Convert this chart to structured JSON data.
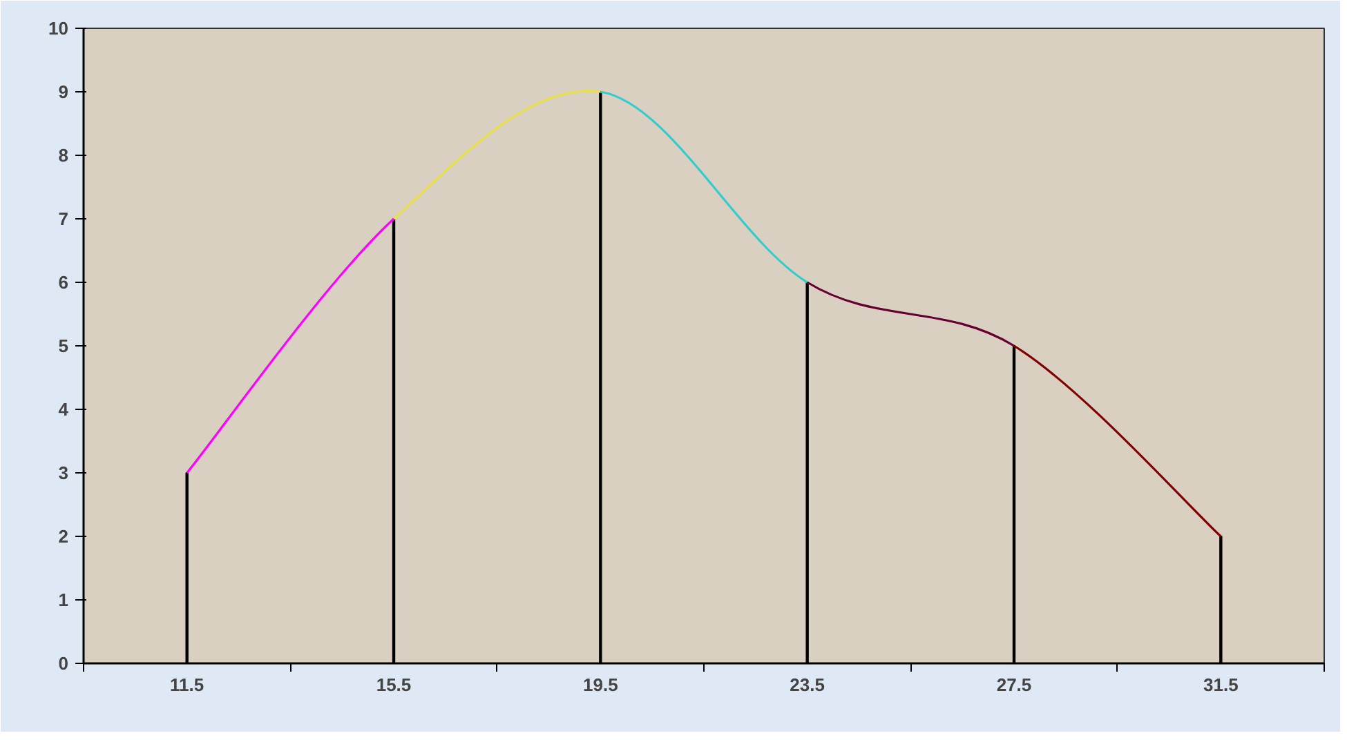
{
  "chart_data": {
    "type": "line",
    "categories": [
      "11.5",
      "15.5",
      "19.5",
      "23.5",
      "27.5",
      "31.5"
    ],
    "ylim": [
      0,
      10
    ],
    "yticks": [
      0,
      1,
      2,
      3,
      4,
      5,
      6,
      7,
      8,
      9,
      10
    ],
    "grid": false,
    "marker": "none",
    "line_style": "solid",
    "series": [
      {
        "type": "bar",
        "color": "#000000",
        "values": [
          3,
          7,
          9,
          6,
          5,
          2
        ]
      },
      {
        "color": "#ff00ff",
        "x": [
          "11.5",
          "15.5"
        ],
        "values": [
          3,
          7
        ]
      },
      {
        "color": "#e8e04a",
        "x": [
          "15.5",
          "19.5"
        ],
        "values": [
          7,
          9
        ]
      },
      {
        "color": "#33cccc",
        "x": [
          "19.5",
          "23.5"
        ],
        "values": [
          9,
          6
        ]
      },
      {
        "color": "#660033",
        "x": [
          "23.5",
          "27.5"
        ],
        "values": [
          6,
          5
        ]
      },
      {
        "color": "#800000",
        "x": [
          "27.5",
          "31.5"
        ],
        "values": [
          5,
          2
        ]
      }
    ]
  }
}
